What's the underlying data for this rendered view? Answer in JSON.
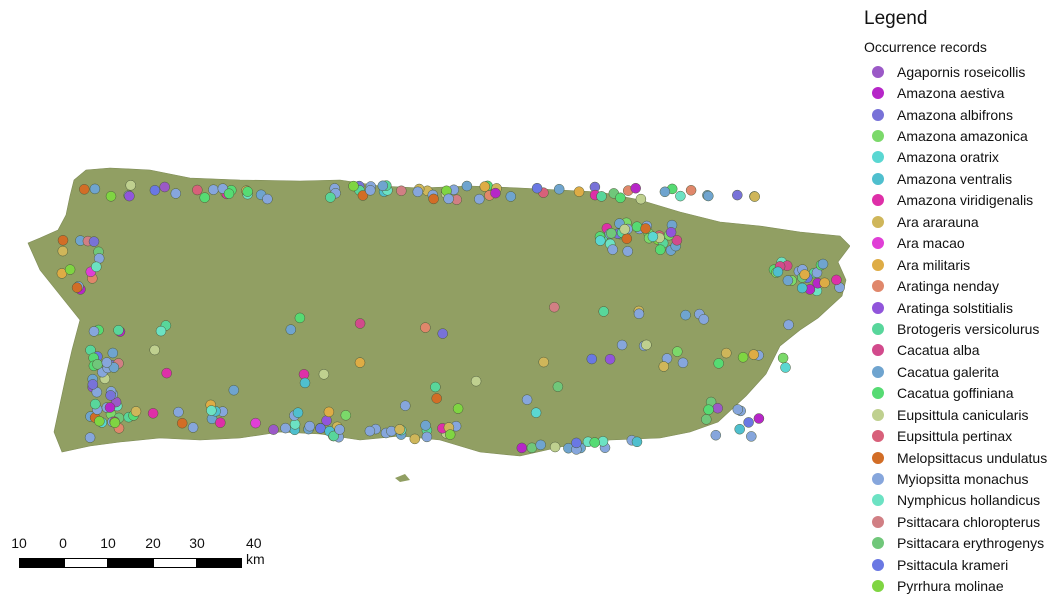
{
  "legend": {
    "title": "Legend",
    "subtitle": "Occurrence records",
    "items": [
      {
        "label": "Agapornis roseicollis",
        "color": "#9b59c7"
      },
      {
        "label": "Amazona aestiva",
        "color": "#b626c8"
      },
      {
        "label": "Amazona albifrons",
        "color": "#7872d8"
      },
      {
        "label": "Amazona amazonica",
        "color": "#7bd96a"
      },
      {
        "label": "Amazona oratrix",
        "color": "#5ad7d2"
      },
      {
        "label": "Amazona ventralis",
        "color": "#4fbfce"
      },
      {
        "label": "Amazona viridigenalis",
        "color": "#de2fa8"
      },
      {
        "label": "Ara ararauna",
        "color": "#cfb65a"
      },
      {
        "label": "Ara macao",
        "color": "#e03fd6"
      },
      {
        "label": "Ara militaris",
        "color": "#deac45"
      },
      {
        "label": "Aratinga nenday",
        "color": "#e0876b"
      },
      {
        "label": "Aratinga solstitialis",
        "color": "#9155db"
      },
      {
        "label": "Brotogeris versicolurus",
        "color": "#58d69b"
      },
      {
        "label": "Cacatua alba",
        "color": "#d24a8c"
      },
      {
        "label": "Cacatua galerita",
        "color": "#6fa4cf"
      },
      {
        "label": "Cacatua goffiniana",
        "color": "#56db73"
      },
      {
        "label": "Eupsittula canicularis",
        "color": "#bfd08f"
      },
      {
        "label": "Eupsittula pertinax",
        "color": "#d8607a"
      },
      {
        "label": "Melopsittacus undulatus",
        "color": "#d26d26"
      },
      {
        "label": "Myiopsitta monachus",
        "color": "#86a6dc"
      },
      {
        "label": "Nymphicus hollandicus",
        "color": "#6ce2c3"
      },
      {
        "label": "Psittacara chloropterus",
        "color": "#d17f84"
      },
      {
        "label": "Psittacara erythrogenys",
        "color": "#70c77a"
      },
      {
        "label": "Psittacula krameri",
        "color": "#6a78e3"
      },
      {
        "label": "Pyrrhura molinae",
        "color": "#7fd542"
      }
    ]
  },
  "scalebar": {
    "tick_labels": [
      "10",
      "0",
      "10",
      "20",
      "30",
      "40 km"
    ]
  },
  "map": {
    "land_color": "#919f63",
    "land_edge_color": "#7d8a55"
  }
}
